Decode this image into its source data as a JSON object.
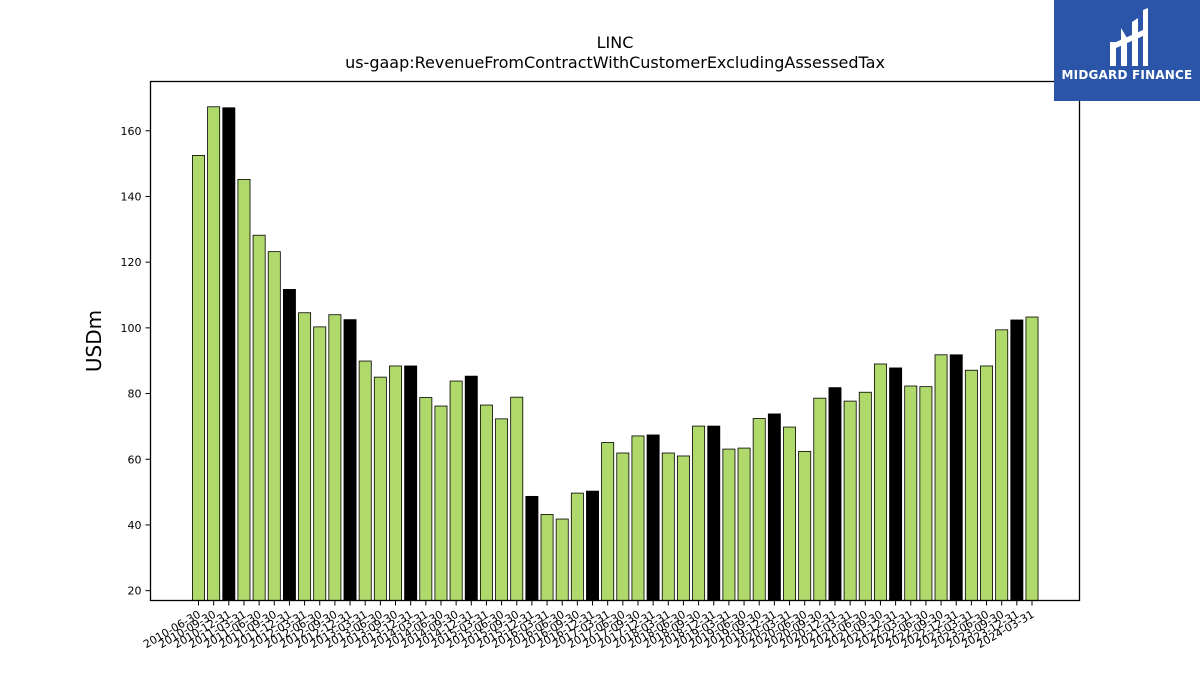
{
  "brand": {
    "name": "MIDGARD FINANCE",
    "bg_color": "#2a55a8"
  },
  "chart_data": {
    "type": "bar",
    "title": "LINC",
    "subtitle": "us-gaap:RevenueFromContractWithCustomerExcludingAssessedTax",
    "ylabel": "USDm",
    "xlabel": "",
    "ylim": [
      17,
      175
    ],
    "yticks": [
      20,
      40,
      60,
      80,
      100,
      120,
      140,
      160
    ],
    "grid": false,
    "colors": {
      "quarter": "#b0d96b",
      "fiscal_year_end": "#000000",
      "edge": "#000000"
    },
    "categories": [
      "2010-06-30",
      "2010-09-30",
      "2010-12-31",
      "2011-03-31",
      "2011-06-30",
      "2011-09-30",
      "2011-12-31",
      "2012-03-31",
      "2012-06-30",
      "2012-09-30",
      "2012-12-31",
      "2013-03-31",
      "2013-06-30",
      "2013-09-30",
      "2013-12-31",
      "2014-03-31",
      "2014-06-30",
      "2014-09-30",
      "2014-12-31",
      "2015-03-31",
      "2015-06-30",
      "2015-09-30",
      "2015-12-31",
      "2016-03-31",
      "2016-06-30",
      "2016-09-30",
      "2016-12-31",
      "2017-03-31",
      "2017-06-30",
      "2017-09-30",
      "2017-12-31",
      "2018-03-31",
      "2018-06-30",
      "2018-09-30",
      "2018-12-31",
      "2019-03-31",
      "2019-06-30",
      "2019-09-30",
      "2019-12-31",
      "2020-03-31",
      "2020-06-30",
      "2020-09-30",
      "2020-12-31",
      "2021-03-31",
      "2021-06-30",
      "2021-09-30",
      "2021-12-31",
      "2022-03-31",
      "2022-06-30",
      "2022-09-30",
      "2022-12-31",
      "2023-03-31",
      "2023-06-30",
      "2023-09-30",
      "2023-12-31",
      "2024-03-31"
    ],
    "values": [
      152.5,
      167.3,
      167.0,
      145.2,
      128.2,
      123.2,
      111.7,
      104.6,
      100.3,
      104.0,
      102.5,
      89.9,
      85.0,
      88.4,
      88.4,
      78.8,
      76.2,
      83.8,
      85.3,
      76.5,
      72.3,
      78.9,
      48.7,
      43.2,
      41.8,
      49.7,
      50.3,
      65.1,
      61.9,
      67.1,
      67.4,
      61.9,
      61.0,
      70.1,
      70.1,
      63.1,
      63.4,
      72.4,
      73.8,
      69.8,
      62.4,
      78.6,
      81.8,
      77.7,
      80.4,
      89.0,
      87.8,
      82.3,
      82.1,
      91.8,
      91.8,
      87.1,
      88.4,
      99.4,
      102.4,
      103.3
    ],
    "fiscal_year_end": [
      false,
      false,
      true,
      false,
      false,
      false,
      true,
      false,
      false,
      false,
      true,
      false,
      false,
      false,
      true,
      false,
      false,
      false,
      true,
      false,
      false,
      false,
      true,
      false,
      false,
      false,
      true,
      false,
      false,
      false,
      true,
      false,
      false,
      false,
      true,
      false,
      false,
      false,
      true,
      false,
      false,
      false,
      true,
      false,
      false,
      false,
      true,
      false,
      false,
      false,
      true,
      false,
      false,
      false,
      true,
      false
    ]
  }
}
